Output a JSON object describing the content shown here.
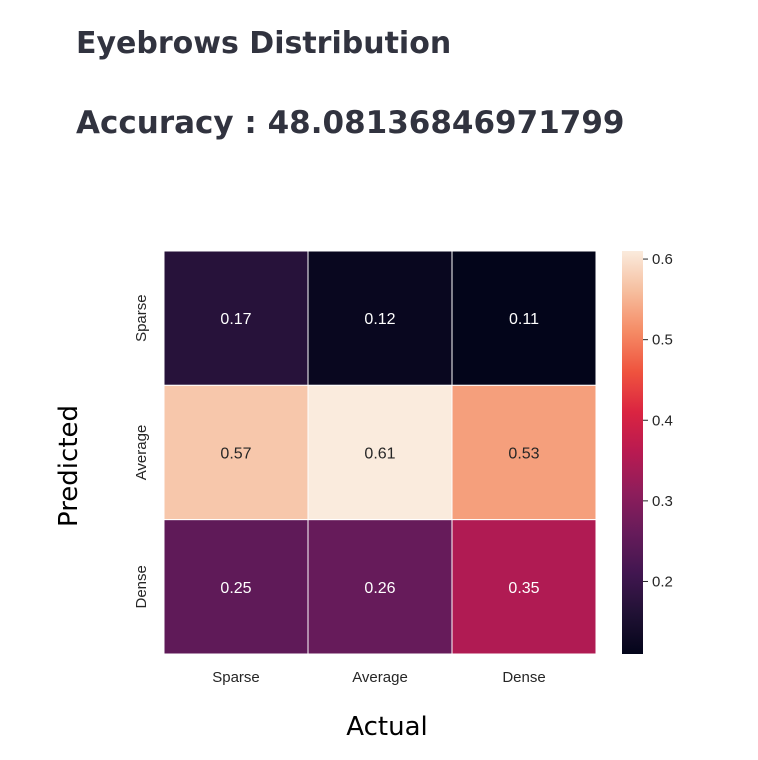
{
  "header": {
    "title": "Eyebrows Distribution",
    "accuracy_text": "Accuracy : 48.08136846971799"
  },
  "chart_data": {
    "type": "heatmap",
    "title": "",
    "xlabel": "Actual",
    "ylabel": "Predicted",
    "x_categories": [
      "Sparse",
      "Average",
      "Dense"
    ],
    "y_categories": [
      "Sparse",
      "Average",
      "Dense"
    ],
    "values": [
      [
        0.17,
        0.12,
        0.11
      ],
      [
        0.57,
        0.61,
        0.53
      ],
      [
        0.25,
        0.26,
        0.35
      ]
    ],
    "value_labels": [
      [
        "0.17",
        "0.12",
        "0.11"
      ],
      [
        "0.57",
        "0.61",
        "0.53"
      ],
      [
        "0.25",
        "0.26",
        "0.35"
      ]
    ],
    "colormap": "rocket",
    "colorbar": {
      "vmin": 0.11,
      "vmax": 0.61,
      "ticks": [
        0.2,
        0.3,
        0.4,
        0.5,
        0.6
      ],
      "tick_labels": [
        "0.2",
        "0.3",
        "0.4",
        "0.5",
        "0.6"
      ]
    },
    "cell_border_color": "#ffffff",
    "dark_text_color": "#262626",
    "light_text_color": "#ffffff",
    "grid": false
  }
}
